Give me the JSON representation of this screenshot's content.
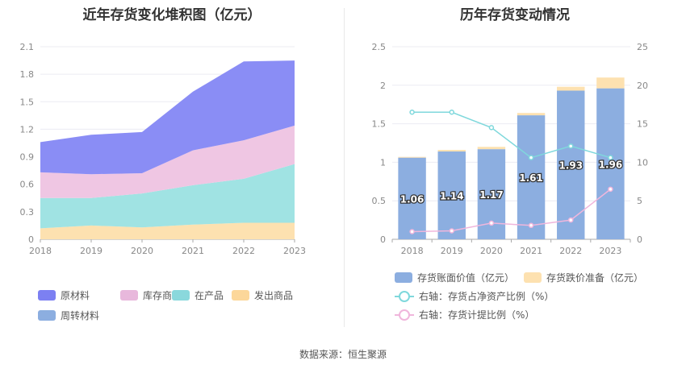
{
  "left_title": "近年存货变化堆积图（亿元）",
  "right_title": "历年存货变动情况",
  "source": "数据来源：恒生聚源",
  "colors": {
    "raw": "#8a8df5",
    "stock": "#efc6e3",
    "wip": "#a0e3e3",
    "shipped": "#fde1b0",
    "revolving": "#8caee0",
    "bar_book": "#8caee0",
    "bar_reserve": "#fde1b0",
    "line_ratio": "#7fd8dc",
    "line_provision": "#f0b6dc"
  },
  "chart_data": [
    {
      "type": "area",
      "title": "近年存货变化堆积图（亿元）",
      "x": [
        "2018",
        "2019",
        "2020",
        "2021",
        "2022",
        "2023"
      ],
      "ylim": [
        0,
        2.1
      ],
      "yticks": [
        "0",
        "0.3",
        "0.6",
        "0.9",
        "1.2",
        "1.5",
        "1.8",
        "2.1"
      ],
      "series": [
        {
          "name": "发出商品",
          "key": "shipped",
          "values": [
            0.12,
            0.15,
            0.13,
            0.16,
            0.18,
            0.18
          ]
        },
        {
          "name": "在产品",
          "key": "wip",
          "values": [
            0.33,
            0.3,
            0.37,
            0.43,
            0.48,
            0.64
          ]
        },
        {
          "name": "库存商品",
          "key": "stock",
          "values": [
            0.28,
            0.26,
            0.22,
            0.38,
            0.42,
            0.42
          ]
        },
        {
          "name": "原材料",
          "key": "raw",
          "values": [
            0.33,
            0.43,
            0.45,
            0.64,
            0.86,
            0.71
          ]
        },
        {
          "name": "周转材料",
          "key": "revolving",
          "values": [
            0.0,
            0.0,
            0.0,
            0.0,
            0.0,
            0.0
          ]
        }
      ],
      "legend": [
        "原材料",
        "库存商品",
        "在产品",
        "发出商品",
        "周转材料"
      ],
      "legend_position": "bottom"
    },
    {
      "type": "bar",
      "title": "历年存货变动情况",
      "categories": [
        "2018",
        "2019",
        "2020",
        "2021",
        "2022",
        "2023"
      ],
      "ylim_left": [
        0,
        2.5
      ],
      "yticks_left": [
        "0",
        "0.5",
        "1",
        "1.5",
        "2",
        "2.5"
      ],
      "ylim_right": [
        0,
        25
      ],
      "yticks_right": [
        "0",
        "5",
        "10",
        "15",
        "20",
        "25"
      ],
      "series": [
        {
          "name": "存货账面价值（亿元）",
          "type": "bar",
          "axis": "left",
          "values": [
            1.06,
            1.14,
            1.17,
            1.61,
            1.93,
            1.96
          ],
          "labels": [
            "1.06",
            "1.14",
            "1.17",
            "1.61",
            "1.93",
            "1.96"
          ]
        },
        {
          "name": "存货跌价准备（亿元）",
          "type": "bar",
          "axis": "left",
          "stacked": true,
          "values": [
            0.01,
            0.02,
            0.03,
            0.03,
            0.05,
            0.14
          ]
        },
        {
          "name": "右轴：存货占净资产比例（%）",
          "type": "line",
          "axis": "right",
          "values": [
            16.5,
            16.5,
            14.5,
            10.6,
            12.1,
            10.6
          ]
        },
        {
          "name": "右轴：存货计提比例（%）",
          "type": "line",
          "axis": "right",
          "values": [
            1.0,
            1.1,
            2.1,
            1.8,
            2.5,
            6.5
          ]
        }
      ],
      "legend_position": "bottom"
    }
  ]
}
